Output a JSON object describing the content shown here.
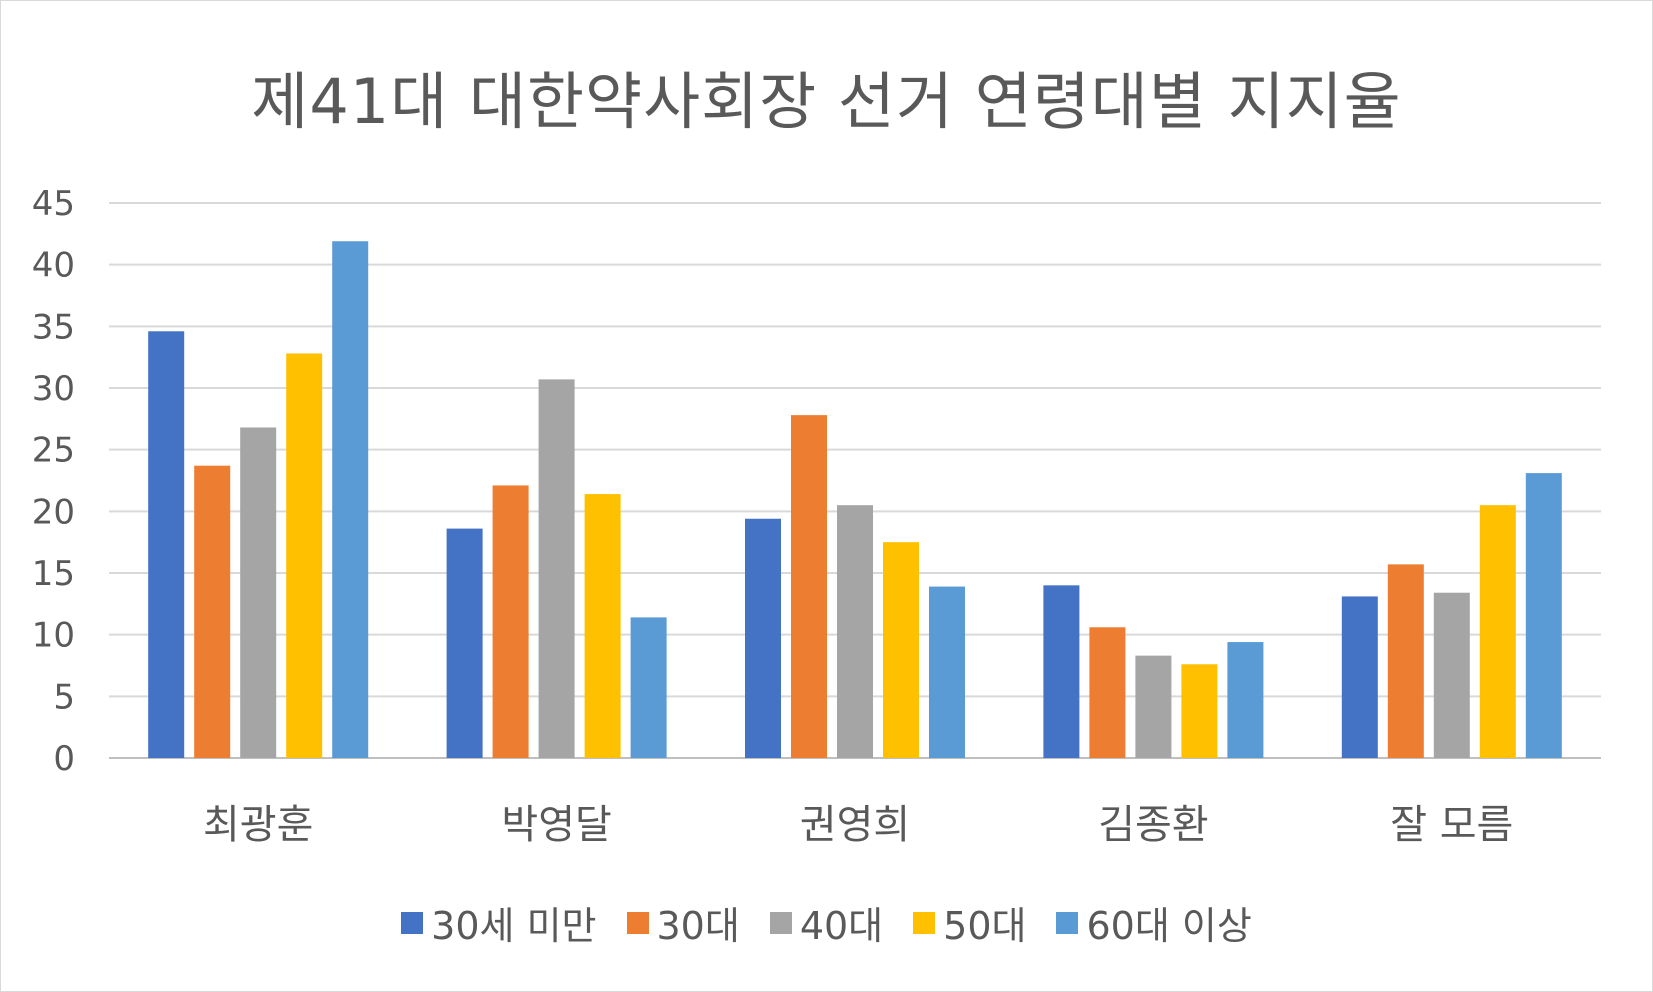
{
  "chart_data": {
    "type": "bar",
    "title": "제41대 대한약사회장 선거 연령대별 지지율",
    "categories": [
      "최광훈",
      "박영달",
      "권영희",
      "김종환",
      "잘 모름"
    ],
    "series": [
      {
        "name": "30세 미만",
        "color": "#4472C4",
        "values": [
          34.6,
          18.6,
          19.4,
          14.0,
          13.1
        ]
      },
      {
        "name": "30대",
        "color": "#ED7D31",
        "values": [
          23.7,
          22.1,
          27.8,
          10.6,
          15.7
        ]
      },
      {
        "name": "40대",
        "color": "#A5A5A5",
        "values": [
          26.8,
          30.7,
          20.5,
          8.3,
          13.4
        ]
      },
      {
        "name": "50대",
        "color": "#FFC000",
        "values": [
          32.8,
          21.4,
          17.5,
          7.6,
          20.5
        ]
      },
      {
        "name": "60대 이상",
        "color": "#5B9BD5",
        "values": [
          41.9,
          11.4,
          13.9,
          9.4,
          23.1
        ]
      }
    ],
    "ylim": [
      0,
      45
    ],
    "yticks": [
      0,
      5,
      10,
      15,
      20,
      25,
      30,
      35,
      40,
      45
    ],
    "grid": true,
    "legend_position": "bottom"
  }
}
